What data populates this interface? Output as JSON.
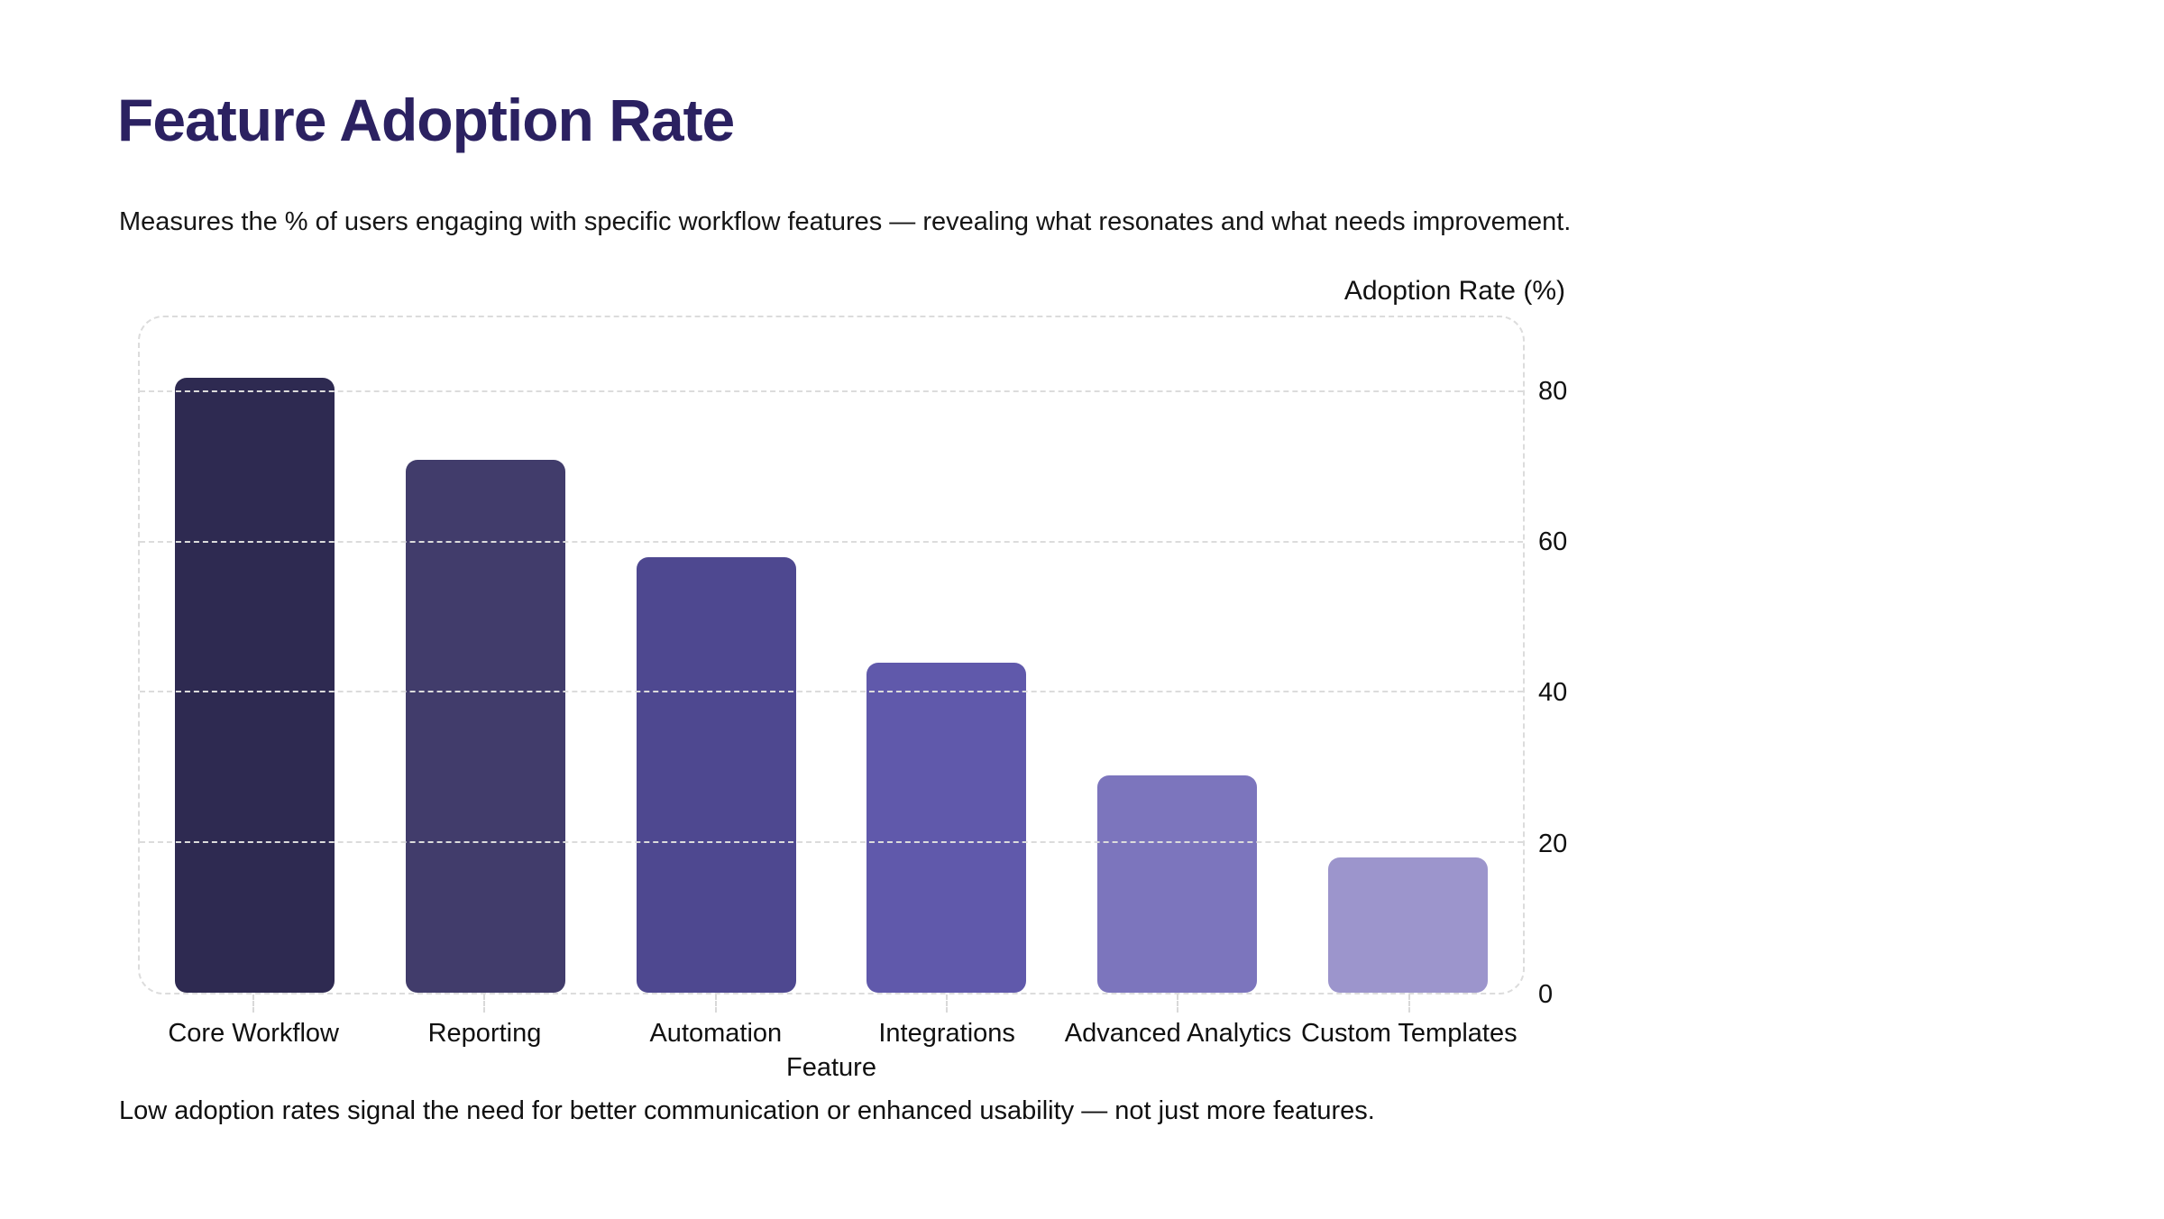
{
  "header": {
    "title": "Feature Adoption Rate",
    "subtitle": "Measures the % of users engaging with specific workflow features — revealing what resonates and what needs improvement."
  },
  "footer": {
    "note": "Low adoption rates signal the need for better communication or enhanced usability — not just more features."
  },
  "colors": {
    "title": "#2b2161",
    "text": "#111111",
    "grid": "#dcdcdc",
    "background": "#ffffff"
  },
  "chart_data": {
    "type": "bar",
    "title": "Feature Adoption Rate",
    "categories": [
      "Core Workflow",
      "Reporting",
      "Automation",
      "Integrations",
      "Advanced Analytics",
      "Custom Templates"
    ],
    "values": [
      82,
      71,
      58,
      44,
      29,
      18
    ],
    "bar_colors": [
      "#2e2a51",
      "#413c6b",
      "#4e4890",
      "#6059ab",
      "#7c75bd",
      "#9c95cc"
    ],
    "xlabel": "Feature",
    "ylabel": "Adoption Rate (%)",
    "yticks": [
      0,
      20,
      40,
      60,
      80
    ],
    "ylim": [
      0,
      90
    ],
    "grid": "dashed horizontal gridlines, dashed rounded plot border, y-axis labels on right"
  }
}
